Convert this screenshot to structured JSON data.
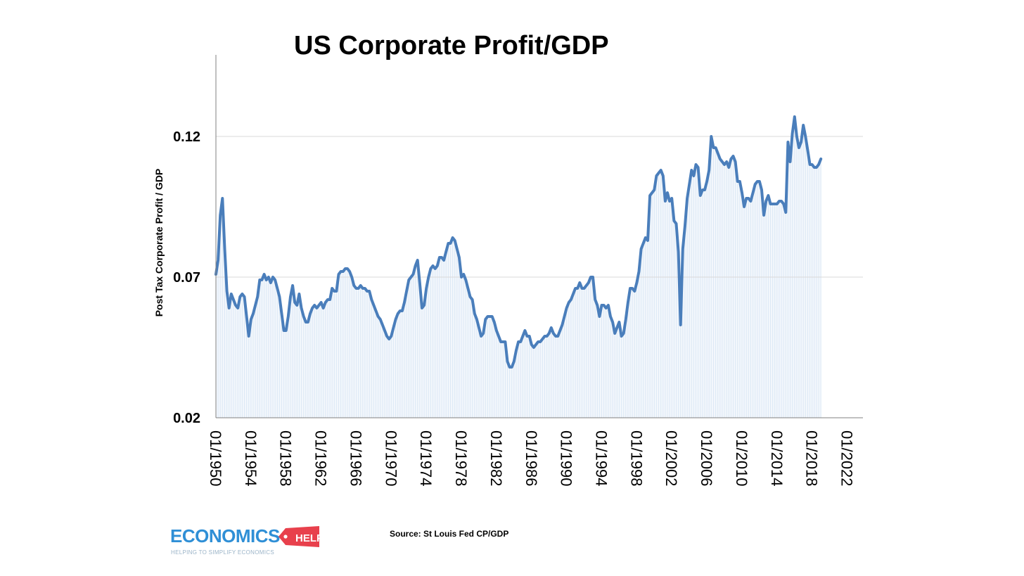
{
  "chart_data": {
    "type": "line",
    "title": "US Corporate Profit/GDP",
    "ylabel": "Post Tax Corporate Profit / GDP",
    "xlabel": "",
    "ylim": [
      0.02,
      0.149
    ],
    "xlim": [
      1950,
      2023.8
    ],
    "yticks": [
      "0.02",
      "0.07",
      "0.12"
    ],
    "ytick_values": [
      0.02,
      0.07,
      0.12
    ],
    "xticks": [
      "01/1950",
      "01/1954",
      "01/1958",
      "01/1962",
      "01/1966",
      "01/1970",
      "01/1974",
      "01/1978",
      "01/1982",
      "01/1986",
      "01/1990",
      "01/1994",
      "01/1998",
      "01/2002",
      "01/2006",
      "01/2010",
      "01/2014",
      "01/2018",
      "01/2022"
    ],
    "xtick_values": [
      1950,
      1954,
      1958,
      1962,
      1966,
      1970,
      1974,
      1978,
      1982,
      1986,
      1990,
      1994,
      1998,
      2002,
      2006,
      2010,
      2014,
      2018,
      2022
    ],
    "grid": true,
    "series": [
      {
        "line_color": "#4a7ebb",
        "fill_color": "#dce8f5",
        "points": [
          [
            1950.0,
            0.071
          ],
          [
            1950.25,
            0.076
          ],
          [
            1950.5,
            0.092
          ],
          [
            1950.75,
            0.098
          ],
          [
            1951.0,
            0.08
          ],
          [
            1951.25,
            0.065
          ],
          [
            1951.5,
            0.059
          ],
          [
            1951.75,
            0.064
          ],
          [
            1952.0,
            0.062
          ],
          [
            1952.25,
            0.06
          ],
          [
            1952.5,
            0.059
          ],
          [
            1952.75,
            0.063
          ],
          [
            1953.0,
            0.064
          ],
          [
            1953.25,
            0.063
          ],
          [
            1953.5,
            0.056
          ],
          [
            1953.75,
            0.049
          ],
          [
            1954.0,
            0.055
          ],
          [
            1954.25,
            0.057
          ],
          [
            1954.5,
            0.06
          ],
          [
            1954.75,
            0.063
          ],
          [
            1955.0,
            0.069
          ],
          [
            1955.25,
            0.069
          ],
          [
            1955.5,
            0.071
          ],
          [
            1955.75,
            0.069
          ],
          [
            1956.0,
            0.07
          ],
          [
            1956.25,
            0.068
          ],
          [
            1956.5,
            0.07
          ],
          [
            1956.75,
            0.069
          ],
          [
            1957.0,
            0.066
          ],
          [
            1957.25,
            0.063
          ],
          [
            1957.5,
            0.057
          ],
          [
            1957.75,
            0.051
          ],
          [
            1958.0,
            0.051
          ],
          [
            1958.25,
            0.056
          ],
          [
            1958.5,
            0.063
          ],
          [
            1958.75,
            0.067
          ],
          [
            1959.0,
            0.061
          ],
          [
            1959.25,
            0.06
          ],
          [
            1959.5,
            0.064
          ],
          [
            1959.75,
            0.059
          ],
          [
            1960.0,
            0.056
          ],
          [
            1960.25,
            0.054
          ],
          [
            1960.5,
            0.054
          ],
          [
            1960.75,
            0.057
          ],
          [
            1961.0,
            0.059
          ],
          [
            1961.25,
            0.06
          ],
          [
            1961.5,
            0.059
          ],
          [
            1961.75,
            0.06
          ],
          [
            1962.0,
            0.061
          ],
          [
            1962.25,
            0.059
          ],
          [
            1962.5,
            0.061
          ],
          [
            1962.75,
            0.062
          ],
          [
            1963.0,
            0.062
          ],
          [
            1963.25,
            0.066
          ],
          [
            1963.5,
            0.065
          ],
          [
            1963.75,
            0.065
          ],
          [
            1964.0,
            0.071
          ],
          [
            1964.25,
            0.072
          ],
          [
            1964.5,
            0.072
          ],
          [
            1964.75,
            0.073
          ],
          [
            1965.0,
            0.073
          ],
          [
            1965.25,
            0.072
          ],
          [
            1965.5,
            0.07
          ],
          [
            1965.75,
            0.067
          ],
          [
            1966.0,
            0.066
          ],
          [
            1966.25,
            0.066
          ],
          [
            1966.5,
            0.067
          ],
          [
            1966.75,
            0.066
          ],
          [
            1967.0,
            0.066
          ],
          [
            1967.25,
            0.065
          ],
          [
            1967.5,
            0.065
          ],
          [
            1967.75,
            0.062
          ],
          [
            1968.0,
            0.06
          ],
          [
            1968.25,
            0.058
          ],
          [
            1968.5,
            0.056
          ],
          [
            1968.75,
            0.055
          ],
          [
            1969.0,
            0.053
          ],
          [
            1969.25,
            0.051
          ],
          [
            1969.5,
            0.049
          ],
          [
            1969.75,
            0.048
          ],
          [
            1970.0,
            0.049
          ],
          [
            1970.25,
            0.052
          ],
          [
            1970.5,
            0.055
          ],
          [
            1970.75,
            0.057
          ],
          [
            1971.0,
            0.058
          ],
          [
            1971.25,
            0.058
          ],
          [
            1971.5,
            0.061
          ],
          [
            1971.75,
            0.065
          ],
          [
            1972.0,
            0.069
          ],
          [
            1972.25,
            0.07
          ],
          [
            1972.5,
            0.071
          ],
          [
            1972.75,
            0.074
          ],
          [
            1973.0,
            0.076
          ],
          [
            1973.25,
            0.068
          ],
          [
            1973.5,
            0.059
          ],
          [
            1973.75,
            0.06
          ],
          [
            1974.0,
            0.066
          ],
          [
            1974.25,
            0.07
          ],
          [
            1974.5,
            0.073
          ],
          [
            1974.75,
            0.074
          ],
          [
            1975.0,
            0.073
          ],
          [
            1975.25,
            0.074
          ],
          [
            1975.5,
            0.077
          ],
          [
            1975.75,
            0.077
          ],
          [
            1976.0,
            0.076
          ],
          [
            1976.25,
            0.079
          ],
          [
            1976.5,
            0.082
          ],
          [
            1976.75,
            0.082
          ],
          [
            1977.0,
            0.084
          ],
          [
            1977.25,
            0.083
          ],
          [
            1977.5,
            0.08
          ],
          [
            1977.75,
            0.077
          ],
          [
            1978.0,
            0.07
          ],
          [
            1978.25,
            0.071
          ],
          [
            1978.5,
            0.069
          ],
          [
            1978.75,
            0.066
          ],
          [
            1979.0,
            0.063
          ],
          [
            1979.25,
            0.062
          ],
          [
            1979.5,
            0.057
          ],
          [
            1979.75,
            0.055
          ],
          [
            1980.0,
            0.052
          ],
          [
            1980.25,
            0.049
          ],
          [
            1980.5,
            0.05
          ],
          [
            1980.75,
            0.055
          ],
          [
            1981.0,
            0.056
          ],
          [
            1981.25,
            0.056
          ],
          [
            1981.5,
            0.056
          ],
          [
            1981.75,
            0.054
          ],
          [
            1982.0,
            0.051
          ],
          [
            1982.25,
            0.049
          ],
          [
            1982.5,
            0.047
          ],
          [
            1982.75,
            0.047
          ],
          [
            1983.0,
            0.047
          ],
          [
            1983.25,
            0.04
          ],
          [
            1983.5,
            0.038
          ],
          [
            1983.75,
            0.038
          ],
          [
            1984.0,
            0.04
          ],
          [
            1984.25,
            0.044
          ],
          [
            1984.5,
            0.047
          ],
          [
            1984.75,
            0.047
          ],
          [
            1985.0,
            0.049
          ],
          [
            1985.25,
            0.051
          ],
          [
            1985.5,
            0.049
          ],
          [
            1985.75,
            0.049
          ],
          [
            1986.0,
            0.046
          ],
          [
            1986.25,
            0.045
          ],
          [
            1986.5,
            0.046
          ],
          [
            1986.75,
            0.047
          ],
          [
            1987.0,
            0.047
          ],
          [
            1987.25,
            0.048
          ],
          [
            1987.5,
            0.049
          ],
          [
            1987.75,
            0.049
          ],
          [
            1988.0,
            0.05
          ],
          [
            1988.25,
            0.052
          ],
          [
            1988.5,
            0.05
          ],
          [
            1988.75,
            0.049
          ],
          [
            1989.0,
            0.049
          ],
          [
            1989.25,
            0.051
          ],
          [
            1989.5,
            0.053
          ],
          [
            1989.75,
            0.056
          ],
          [
            1990.0,
            0.059
          ],
          [
            1990.25,
            0.061
          ],
          [
            1990.5,
            0.062
          ],
          [
            1990.75,
            0.064
          ],
          [
            1991.0,
            0.066
          ],
          [
            1991.25,
            0.066
          ],
          [
            1991.5,
            0.068
          ],
          [
            1991.75,
            0.066
          ],
          [
            1992.0,
            0.066
          ],
          [
            1992.25,
            0.067
          ],
          [
            1992.5,
            0.068
          ],
          [
            1992.75,
            0.07
          ],
          [
            1993.0,
            0.07
          ],
          [
            1993.25,
            0.062
          ],
          [
            1993.5,
            0.06
          ],
          [
            1993.75,
            0.056
          ],
          [
            1994.0,
            0.06
          ],
          [
            1994.25,
            0.06
          ],
          [
            1994.5,
            0.059
          ],
          [
            1994.75,
            0.06
          ],
          [
            1995.0,
            0.056
          ],
          [
            1995.25,
            0.054
          ],
          [
            1995.5,
            0.05
          ],
          [
            1995.75,
            0.052
          ],
          [
            1996.0,
            0.054
          ],
          [
            1996.25,
            0.049
          ],
          [
            1996.5,
            0.05
          ],
          [
            1996.75,
            0.055
          ],
          [
            1997.0,
            0.061
          ],
          [
            1997.25,
            0.066
          ],
          [
            1997.5,
            0.066
          ],
          [
            1997.75,
            0.065
          ],
          [
            1998.0,
            0.068
          ],
          [
            1998.25,
            0.072
          ],
          [
            1998.5,
            0.08
          ],
          [
            1998.75,
            0.082
          ],
          [
            1999.0,
            0.084
          ],
          [
            1999.25,
            0.083
          ],
          [
            1999.5,
            0.099
          ],
          [
            1999.75,
            0.1
          ],
          [
            2000.0,
            0.101
          ],
          [
            2000.25,
            0.106
          ],
          [
            2000.5,
            0.107
          ],
          [
            2000.75,
            0.108
          ],
          [
            2001.0,
            0.106
          ],
          [
            2001.25,
            0.097
          ],
          [
            2001.5,
            0.1
          ],
          [
            2001.75,
            0.097
          ],
          [
            2002.0,
            0.098
          ],
          [
            2002.25,
            0.09
          ],
          [
            2002.5,
            0.089
          ],
          [
            2002.75,
            0.079
          ],
          [
            2003.0,
            0.053
          ],
          [
            2003.25,
            0.08
          ],
          [
            2003.5,
            0.088
          ],
          [
            2003.75,
            0.098
          ],
          [
            2004.0,
            0.103
          ],
          [
            2004.25,
            0.108
          ],
          [
            2004.5,
            0.106
          ],
          [
            2004.75,
            0.11
          ],
          [
            2005.0,
            0.109
          ],
          [
            2005.25,
            0.099
          ],
          [
            2005.5,
            0.101
          ],
          [
            2005.75,
            0.101
          ],
          [
            2006.0,
            0.104
          ],
          [
            2006.25,
            0.108
          ],
          [
            2006.5,
            0.12
          ],
          [
            2006.75,
            0.116
          ],
          [
            2007.0,
            0.116
          ],
          [
            2007.25,
            0.114
          ],
          [
            2007.5,
            0.112
          ],
          [
            2007.75,
            0.111
          ],
          [
            2008.0,
            0.11
          ],
          [
            2008.25,
            0.111
          ],
          [
            2008.5,
            0.109
          ],
          [
            2008.75,
            0.112
          ],
          [
            2009.0,
            0.113
          ],
          [
            2009.25,
            0.111
          ],
          [
            2009.5,
            0.104
          ],
          [
            2009.75,
            0.104
          ],
          [
            2010.0,
            0.1
          ],
          [
            2010.25,
            0.095
          ],
          [
            2010.5,
            0.098
          ],
          [
            2010.75,
            0.098
          ],
          [
            2011.0,
            0.097
          ],
          [
            2011.25,
            0.1
          ],
          [
            2011.5,
            0.103
          ],
          [
            2011.75,
            0.104
          ],
          [
            2012.0,
            0.104
          ],
          [
            2012.25,
            0.101
          ],
          [
            2012.5,
            0.092
          ],
          [
            2012.75,
            0.097
          ],
          [
            2013.0,
            0.099
          ],
          [
            2013.25,
            0.096
          ],
          [
            2013.5,
            0.096
          ],
          [
            2013.75,
            0.096
          ],
          [
            2014.0,
            0.096
          ],
          [
            2014.25,
            0.097
          ],
          [
            2014.5,
            0.097
          ],
          [
            2014.75,
            0.096
          ],
          [
            2015.0,
            0.093
          ],
          [
            2015.25,
            0.118
          ],
          [
            2015.5,
            0.111
          ],
          [
            2015.75,
            0.121
          ],
          [
            2016.0,
            0.127
          ],
          [
            2016.25,
            0.12
          ],
          [
            2016.5,
            0.116
          ],
          [
            2016.75,
            0.118
          ],
          [
            2017.0,
            0.124
          ],
          [
            2017.25,
            0.12
          ],
          [
            2017.5,
            0.115
          ],
          [
            2017.75,
            0.11
          ],
          [
            2018.0,
            0.11
          ],
          [
            2018.25,
            0.109
          ],
          [
            2018.5,
            0.109
          ],
          [
            2018.75,
            0.11
          ],
          [
            2019.0,
            0.112
          ]
        ]
      }
    ]
  },
  "source_note": "Source: St Louis Fed CP/GDP",
  "logo": {
    "word": "ECONOMICS",
    "tag": "HELP",
    "tagline": "HELPING TO SIMPLIFY ECONOMICS",
    "word_color": "#2f8fd6",
    "tag_color": "#e8404c"
  }
}
